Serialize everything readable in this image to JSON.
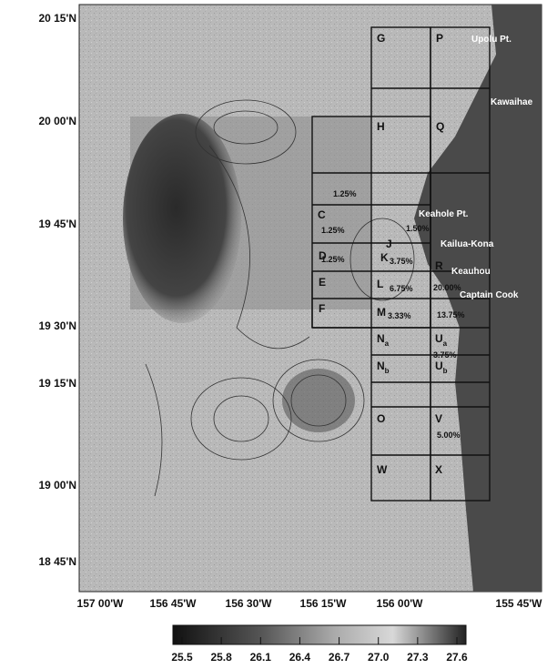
{
  "y_axis_labels": [
    "20 15'N",
    "20 00'N",
    "19 45'N",
    "19 30'N",
    "19 15'N",
    "19 00'N",
    "18 45'N"
  ],
  "x_axis_labels": [
    "157 00'W",
    "156 45'W",
    "156 30'W",
    "156 15'W",
    "156 00'W",
    "155 45'W"
  ],
  "colorbar_labels": [
    "25.5",
    "25.8",
    "26.1",
    "26.4",
    "26.7",
    "27.0",
    "27.3",
    "27.6"
  ],
  "cells": [
    {
      "label": "G"
    },
    {
      "label": "P"
    },
    {
      "label": "H"
    },
    {
      "label": "Q"
    },
    {
      "label": "C"
    },
    {
      "label": "D"
    },
    {
      "label": "E"
    },
    {
      "label": "F"
    },
    {
      "label": "J"
    },
    {
      "label": "K"
    },
    {
      "label": "L"
    },
    {
      "label": "R"
    },
    {
      "label": "M"
    },
    {
      "label": "N",
      "sub": "a"
    },
    {
      "label": "U",
      "sub": "a"
    },
    {
      "label": "N",
      "sub": "b"
    },
    {
      "label": "U",
      "sub": "b"
    },
    {
      "label": "O"
    },
    {
      "label": "V"
    },
    {
      "label": "W"
    },
    {
      "label": "X"
    }
  ],
  "percent_labels": [
    "1.25%",
    "1.25%",
    "1.50%",
    "1.25%",
    "3.75%",
    "6.75%",
    "20.00%",
    "3.33%",
    "13.75%",
    "3.75%",
    "5.00%"
  ],
  "places": [
    "Upolu Pt.",
    "Kawaihae",
    "Keahole Pt.",
    "Kailua-Kona",
    "Keauhou",
    "Captain Cook"
  ]
}
